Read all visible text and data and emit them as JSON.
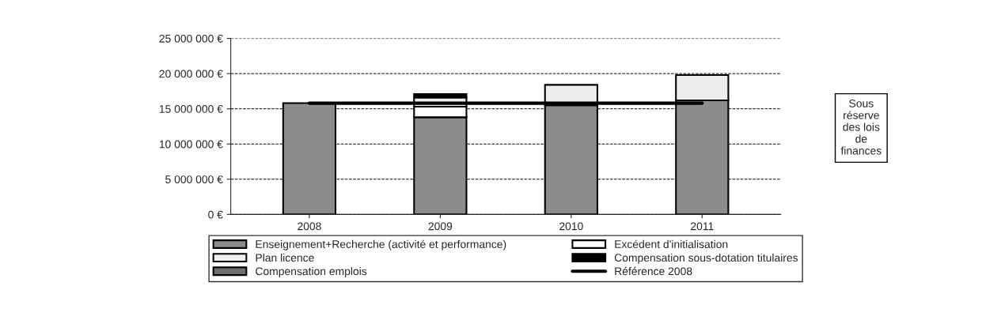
{
  "chart_data": {
    "type": "bar",
    "stacked": true,
    "categories": [
      "2008",
      "2009",
      "2010",
      "2011"
    ],
    "series": [
      {
        "name": "Enseignement+Recherche (activité et performance)",
        "color": "#8c8c8c",
        "values": [
          15800000,
          13800000,
          15500000,
          16200000
        ]
      },
      {
        "name": "Excédent d'initialisation",
        "color": "#ffffff",
        "values": [
          null,
          1500000,
          null,
          null
        ]
      },
      {
        "name": "Plan licence",
        "color": "#ededed",
        "values": [
          null,
          1300000,
          2900000,
          3600000
        ]
      },
      {
        "name": "Compensation sous-dotation titulaires",
        "color": "#000000",
        "values": [
          null,
          500000,
          null,
          null
        ]
      },
      {
        "name": "Compensation emplois",
        "color": "#6e6e6e",
        "values": [
          null,
          null,
          null,
          null
        ]
      },
      {
        "name": "Référence 2008",
        "type": "line",
        "color": "#000000",
        "values": [
          15800000,
          15800000,
          15800000,
          15800000
        ]
      }
    ],
    "ylim": [
      0,
      25000000
    ],
    "yticks": [
      {
        "value": 0,
        "label": "0 €"
      },
      {
        "value": 5000000,
        "label": "5 000 000 €"
      },
      {
        "value": 10000000,
        "label": "10 000 000 €"
      },
      {
        "value": 15000000,
        "label": "15 000 000 €"
      },
      {
        "value": 20000000,
        "label": "20 000 000 €"
      },
      {
        "value": 25000000,
        "label": "25 000 000 €"
      }
    ],
    "grid": "y",
    "legend": "bottom",
    "annotations": [
      "Sous\nréserve\ndes lois\nde\nfinances"
    ]
  }
}
